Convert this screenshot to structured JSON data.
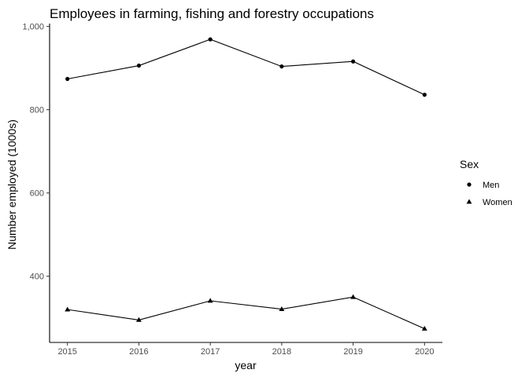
{
  "chart_data": {
    "type": "line",
    "title": "Employees in farming, fishing and forestry occupations",
    "xlabel": "year",
    "ylabel": "Number employed (1000s)",
    "x": [
      2015,
      2016,
      2017,
      2018,
      2019,
      2020
    ],
    "x_tick_labels": [
      "2015",
      "2016",
      "2017",
      "2018",
      "2019",
      "2020"
    ],
    "y_ticks": [
      400,
      600,
      800,
      1000
    ],
    "y_tick_labels": [
      "400",
      "600",
      "800",
      "1,000"
    ],
    "xlim": [
      2014.75,
      2020.25
    ],
    "ylim": [
      241,
      1007
    ],
    "grid": false,
    "legend": {
      "title": "Sex",
      "position": "right",
      "entries": [
        {
          "label": "Men",
          "marker": "circle"
        },
        {
          "label": "Women",
          "marker": "triangle"
        }
      ]
    },
    "series": [
      {
        "name": "Men",
        "marker": "circle",
        "color": "#000000",
        "values": [
          874,
          906,
          969,
          904,
          916,
          836
        ]
      },
      {
        "name": "Women",
        "marker": "triangle",
        "color": "#000000",
        "values": [
          320,
          295,
          341,
          321,
          350,
          274
        ]
      }
    ]
  }
}
